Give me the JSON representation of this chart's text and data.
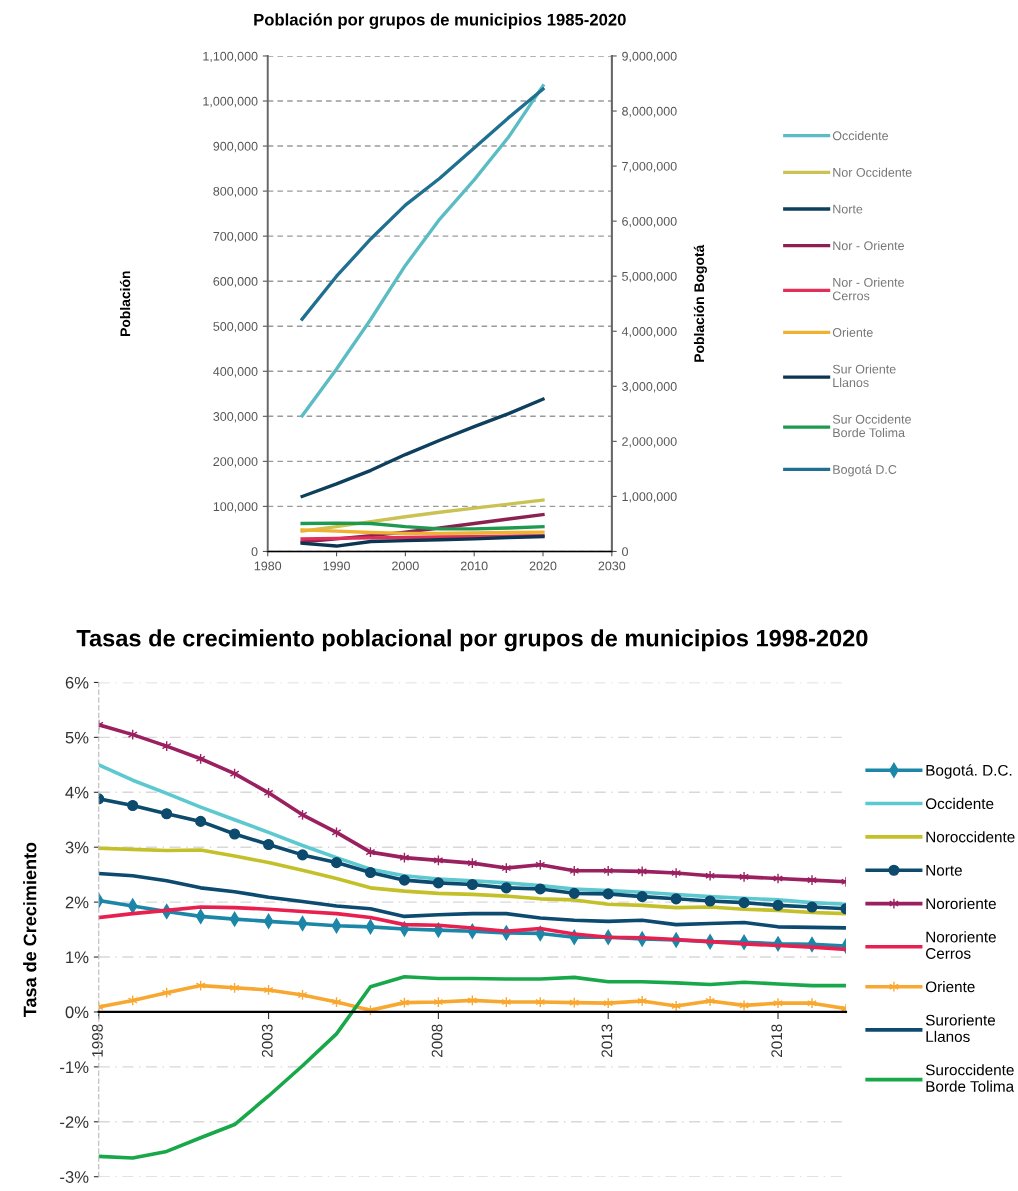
{
  "chart_data": [
    {
      "type": "line",
      "title": "Población por grupos de municipios 1985-2020",
      "ylabel": "Población",
      "y2label": "Población Bogotá",
      "x": [
        1985,
        1990,
        1995,
        2000,
        2005,
        2010,
        2015,
        2020
      ],
      "xlim": [
        1980,
        2030
      ],
      "xticks": [
        1980,
        1990,
        2000,
        2010,
        2020,
        2030
      ],
      "ylim": [
        0,
        1100000
      ],
      "yticks": [
        0,
        {
          "value": 100000,
          "label": "100,000"
        },
        {
          "value": 200000,
          "label": "200,000"
        },
        {
          "value": 300000,
          "label": "300,000"
        },
        {
          "value": 400000,
          "label": "400,000"
        },
        {
          "value": 500000,
          "label": "500,000"
        },
        {
          "value": 600000,
          "label": "600,000"
        },
        {
          "value": 700000,
          "label": "700,000"
        },
        {
          "value": 800000,
          "label": "800,000"
        },
        {
          "value": 900000,
          "label": "900,000"
        },
        {
          "value": 1000000,
          "label": "1,000,000"
        },
        {
          "value": 1100000,
          "label": "1,100,000"
        }
      ],
      "y2lim": [
        0,
        9000000
      ],
      "y2ticks": [
        0,
        {
          "value": 1000000,
          "label": "1,000,000"
        },
        {
          "value": 2000000,
          "label": "2,000,000"
        },
        {
          "value": 3000000,
          "label": "3,000,000"
        },
        {
          "value": 4000000,
          "label": "4,000,000"
        },
        {
          "value": 5000000,
          "label": "5,000,000"
        },
        {
          "value": 6000000,
          "label": "6,000,000"
        },
        {
          "value": 7000000,
          "label": "7,000,000"
        },
        {
          "value": 8000000,
          "label": "8,000,000"
        },
        {
          "value": 9000000,
          "label": "9,000,000"
        }
      ],
      "grid": "y",
      "legend": "right",
      "series": [
        {
          "name": "Occidente",
          "color": "#5bbcc4",
          "values": [
            301000,
            405000,
            516000,
            635000,
            738000,
            825000,
            920000,
            1034000
          ]
        },
        {
          "name": "Nor Occidente",
          "color": "#cbc254",
          "values": [
            45000,
            55000,
            66000,
            77000,
            87000,
            96000,
            105000,
            114000
          ]
        },
        {
          "name": "Norte",
          "color": "#0e3f5c",
          "values": [
            122000,
            150000,
            180000,
            215000,
            247000,
            277000,
            306000,
            338000
          ]
        },
        {
          "name": "Nor - Oriente",
          "color": "#8b2150",
          "values": [
            21000,
            28000,
            35000,
            43000,
            52000,
            62000,
            72000,
            82000
          ]
        },
        {
          "name": "Nor - Oriente\nCerros",
          "color": "#e0305a",
          "values": [
            28000,
            29000,
            30000,
            31000,
            32000,
            33000,
            34000,
            35000
          ]
        },
        {
          "name": "Oriente",
          "color": "#f0b030",
          "values": [
            48000,
            45000,
            42000,
            40000,
            40000,
            41000,
            42000,
            43000
          ]
        },
        {
          "name": "Sur Oriente\nLlanos",
          "color": "#0b3551",
          "values": [
            18000,
            12000,
            22000,
            24000,
            26000,
            28000,
            31000,
            33000
          ]
        },
        {
          "name": "Sur Occidente\nBorde Tolima",
          "color": "#1e9a50",
          "values": [
            62000,
            63000,
            62000,
            55000,
            50000,
            50000,
            52000,
            55000
          ]
        },
        {
          "name": "Bogotá D.C",
          "color": "#1f7090",
          "axis": "y2",
          "values": [
            4220000,
            5000000,
            5680000,
            6290000,
            6780000,
            7330000,
            7880000,
            8400000
          ]
        }
      ]
    },
    {
      "type": "line",
      "title": "Tasas de crecimiento poblacional por grupos de municipios 1998-2020",
      "ylabel": "Tasa de Crecimiento",
      "x": [
        1998,
        1999,
        2000,
        2001,
        2002,
        2003,
        2004,
        2005,
        2006,
        2007,
        2008,
        2009,
        2010,
        2011,
        2012,
        2013,
        2014,
        2015,
        2016,
        2017,
        2018,
        2019,
        2020
      ],
      "xlim": [
        1998,
        2020
      ],
      "xticks": [
        1998,
        2003,
        2008,
        2013,
        2018
      ],
      "ylim": [
        -3,
        6
      ],
      "yticks": [
        {
          "value": -3,
          "label": "-3%"
        },
        {
          "value": -2,
          "label": "-2%"
        },
        {
          "value": -1,
          "label": "-1%"
        },
        {
          "value": 0,
          "label": "0%"
        },
        {
          "value": 1,
          "label": "1%"
        },
        {
          "value": 2,
          "label": "2%"
        },
        {
          "value": 3,
          "label": "3%"
        },
        {
          "value": 4,
          "label": "4%"
        },
        {
          "value": 5,
          "label": "5%"
        },
        {
          "value": 6,
          "label": "6%"
        }
      ],
      "grid": "y",
      "legend": "right",
      "series": [
        {
          "name": "Bogotá. D.C.",
          "color": "#1c86a8",
          "marker": "diamond",
          "values": [
            2.03,
            1.93,
            1.83,
            1.74,
            1.69,
            1.65,
            1.61,
            1.57,
            1.55,
            1.51,
            1.49,
            1.47,
            1.44,
            1.43,
            1.36,
            1.36,
            1.33,
            1.31,
            1.28,
            1.27,
            1.24,
            1.23,
            1.2
          ]
        },
        {
          "name": "Occidente",
          "color": "#5cc8d0",
          "values": [
            4.5,
            4.22,
            3.98,
            3.73,
            3.5,
            3.27,
            3.03,
            2.81,
            2.6,
            2.48,
            2.42,
            2.39,
            2.35,
            2.3,
            2.24,
            2.21,
            2.18,
            2.14,
            2.1,
            2.07,
            2.04,
            1.99,
            1.96
          ]
        },
        {
          "name": "Noroccidente",
          "color": "#c4c02a",
          "values": [
            2.98,
            2.96,
            2.94,
            2.95,
            2.84,
            2.72,
            2.58,
            2.43,
            2.26,
            2.2,
            2.16,
            2.14,
            2.11,
            2.06,
            2.04,
            1.96,
            1.94,
            1.9,
            1.91,
            1.87,
            1.85,
            1.81,
            1.79
          ]
        },
        {
          "name": "Norte",
          "color": "#0c4a6e",
          "marker": "circle",
          "values": [
            3.88,
            3.76,
            3.61,
            3.47,
            3.24,
            3.05,
            2.86,
            2.72,
            2.54,
            2.4,
            2.35,
            2.32,
            2.26,
            2.24,
            2.16,
            2.15,
            2.1,
            2.06,
            2.02,
            1.99,
            1.94,
            1.91,
            1.88
          ]
        },
        {
          "name": "Nororiente",
          "color": "#9a2060",
          "marker": "cross",
          "values": [
            5.23,
            5.05,
            4.84,
            4.61,
            4.34,
            3.99,
            3.59,
            3.27,
            2.91,
            2.81,
            2.76,
            2.71,
            2.62,
            2.68,
            2.57,
            2.57,
            2.56,
            2.53,
            2.48,
            2.46,
            2.43,
            2.4,
            2.37
          ]
        },
        {
          "name": "Nororiente\nCerros",
          "color": "#e8204f",
          "values": [
            1.72,
            1.79,
            1.85,
            1.91,
            1.9,
            1.87,
            1.83,
            1.79,
            1.72,
            1.59,
            1.58,
            1.53,
            1.47,
            1.52,
            1.42,
            1.36,
            1.35,
            1.32,
            1.28,
            1.24,
            1.21,
            1.18,
            1.14
          ]
        },
        {
          "name": "Oriente",
          "color": "#f8a830",
          "marker": "cross",
          "values": [
            0.09,
            0.21,
            0.35,
            0.48,
            0.44,
            0.4,
            0.31,
            0.18,
            0.03,
            0.17,
            0.18,
            0.21,
            0.18,
            0.18,
            0.17,
            0.16,
            0.2,
            0.11,
            0.2,
            0.12,
            0.16,
            0.16,
            0.06
          ]
        },
        {
          "name": "Suroriente\nLlanos",
          "color": "#0d4a70",
          "values": [
            2.52,
            2.48,
            2.39,
            2.26,
            2.19,
            2.09,
            2.01,
            1.93,
            1.88,
            1.74,
            1.77,
            1.79,
            1.79,
            1.71,
            1.67,
            1.65,
            1.67,
            1.59,
            1.61,
            1.63,
            1.55,
            1.54,
            1.53
          ]
        },
        {
          "name": "Suroccidente\nBorde Tolima",
          "color": "#18a84a",
          "values": [
            -2.63,
            -2.66,
            -2.54,
            -2.29,
            -2.05,
            -1.53,
            -0.98,
            -0.4,
            0.46,
            0.64,
            0.61,
            0.61,
            0.6,
            0.6,
            0.63,
            0.55,
            0.55,
            0.53,
            0.5,
            0.54,
            0.51,
            0.48,
            0.48
          ]
        }
      ]
    }
  ]
}
